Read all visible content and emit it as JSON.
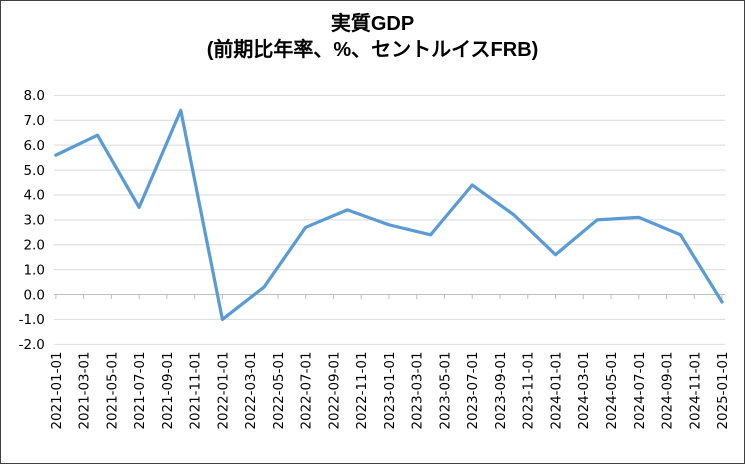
{
  "window": {
    "background_color": "#FFFFFF",
    "border_color": "#404040"
  },
  "chart_data": {
    "type": "line",
    "title": "実質GDP",
    "subtitle": "(前期比年率、%、セントルイスFRB)",
    "legend": "none",
    "grid": "horizontal",
    "series": [
      {
        "name": "実質GDP（前期比年率、%）",
        "x": [
          "2021-01-01",
          "2021-04-01",
          "2021-07-01",
          "2021-10-01",
          "2022-01-01",
          "2022-04-01",
          "2022-07-01",
          "2022-10-01",
          "2023-01-01",
          "2023-04-01",
          "2023-07-01",
          "2023-10-01",
          "2024-01-01",
          "2024-04-01",
          "2024-07-01",
          "2024-10-01",
          "2025-01-01"
        ],
        "month_index": [
          0,
          3,
          6,
          9,
          12,
          15,
          18,
          21,
          24,
          27,
          30,
          33,
          36,
          39,
          42,
          45,
          48
        ],
        "values": [
          5.6,
          6.4,
          3.5,
          7.4,
          -1.0,
          0.3,
          2.7,
          3.4,
          2.8,
          2.4,
          4.4,
          3.2,
          1.6,
          3.0,
          3.1,
          2.4,
          -0.3
        ]
      }
    ],
    "x_tick_labels": [
      "2021-01-01",
      "2021-03-01",
      "2021-05-01",
      "2021-07-01",
      "2021-09-01",
      "2021-11-01",
      "2022-01-01",
      "2022-03-01",
      "2022-05-01",
      "2022-07-01",
      "2022-09-01",
      "2022-11-01",
      "2023-01-01",
      "2023-03-01",
      "2023-05-01",
      "2023-07-01",
      "2023-09-01",
      "2023-11-01",
      "2024-01-01",
      "2024-03-01",
      "2024-05-01",
      "2024-07-01",
      "2024-09-01",
      "2024-11-01",
      "2025-01-01"
    ],
    "x_tick_month_index": [
      0,
      2,
      4,
      6,
      8,
      10,
      12,
      14,
      16,
      18,
      20,
      22,
      24,
      26,
      28,
      30,
      32,
      34,
      36,
      38,
      40,
      42,
      44,
      46,
      48
    ],
    "y_tick_labels": [
      "8.0",
      "7.0",
      "6.0",
      "5.0",
      "4.0",
      "3.0",
      "2.0",
      "1.0",
      "0.0",
      "-1.0",
      "-2.0"
    ],
    "ylim": [
      -2.0,
      8.0
    ],
    "xlim_months": [
      0,
      48
    ],
    "line_color": "#5B9BD5",
    "gridline_color": "#D9D9D9",
    "axis_color": "#BFBFBF",
    "label_color": "#000000",
    "title_color": "#000000"
  }
}
